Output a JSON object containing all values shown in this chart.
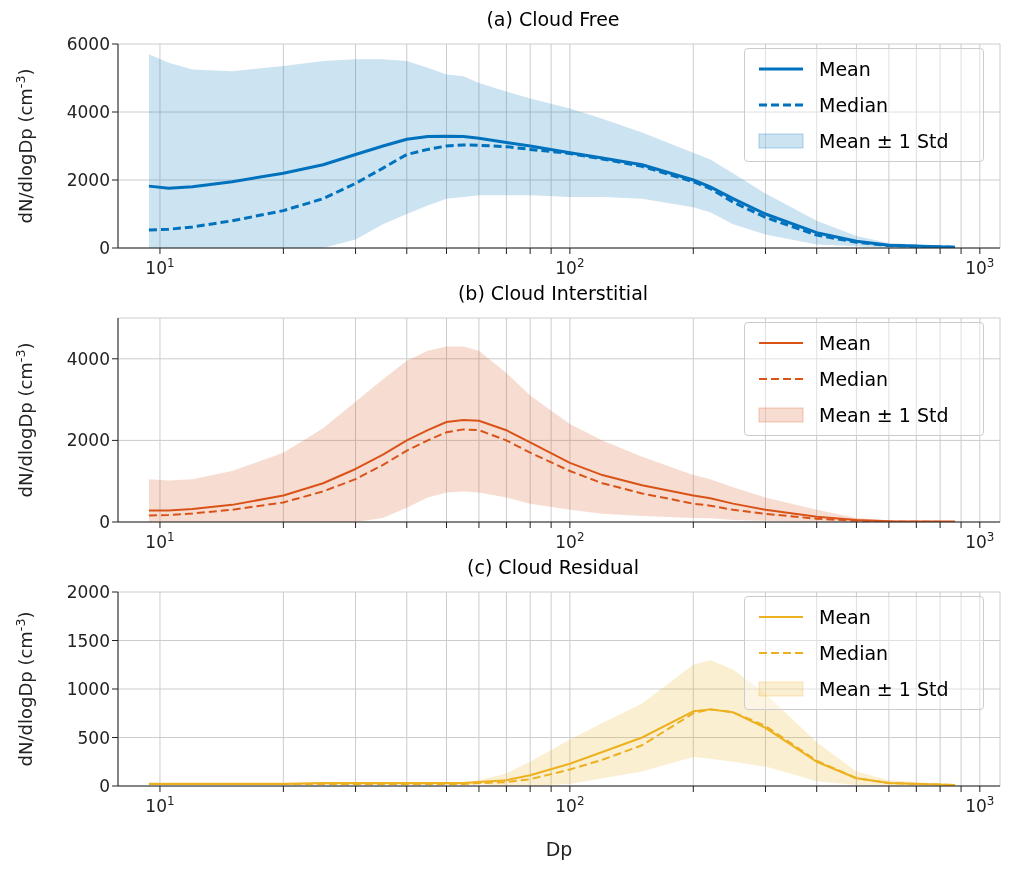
{
  "chart_data": [
    {
      "type": "line",
      "title": "(a) Cloud Free",
      "ylabel": "dN/dlogDp (cm$^{-3}$)",
      "annotations": [
        "Mean ± 1 Std"
      ],
      "xlim": [
        7.9,
        1120
      ],
      "ylim": [
        0,
        6000
      ],
      "yticks": [
        0,
        2000,
        4000,
        6000
      ],
      "log": "x",
      "grid": true,
      "legend": "top right",
      "xticks": [
        {
          "value": 10,
          "label": "10$^{1}$"
        },
        {
          "value": 20,
          "label": null
        },
        {
          "value": 30,
          "label": null
        },
        {
          "value": 40,
          "label": null
        },
        {
          "value": 50,
          "label": null
        },
        {
          "value": 60,
          "label": null
        },
        {
          "value": 70,
          "label": null
        },
        {
          "value": 80,
          "label": null
        },
        {
          "value": 90,
          "label": null
        },
        {
          "value": 100,
          "label": "10$^{2}$"
        },
        {
          "value": 200,
          "label": null
        },
        {
          "value": 300,
          "label": null
        },
        {
          "value": 400,
          "label": null
        },
        {
          "value": 500,
          "label": null
        },
        {
          "value": 600,
          "label": null
        },
        {
          "value": 700,
          "label": null
        },
        {
          "value": 800,
          "label": null
        },
        {
          "value": 900,
          "label": null
        },
        {
          "value": 1000,
          "label": "10$^{3}$"
        }
      ],
      "x": [
        9.4,
        10.5,
        12,
        15,
        20,
        25,
        30,
        35,
        40,
        45,
        50,
        55,
        60,
        70,
        80,
        100,
        120,
        150,
        200,
        220,
        250,
        300,
        400,
        500,
        600,
        870
      ],
      "series": [
        {
          "name": "Mean",
          "color": "#0072bd",
          "line_style": "solid",
          "values": [
            1820,
            1760,
            1800,
            1950,
            2200,
            2450,
            2750,
            3000,
            3200,
            3280,
            3290,
            3280,
            3230,
            3100,
            3000,
            2800,
            2650,
            2450,
            2000,
            1800,
            1450,
            1000,
            450,
            200,
            80,
            20
          ],
          "upper": [
            5700,
            5450,
            5250,
            5200,
            5350,
            5500,
            5550,
            5550,
            5500,
            5300,
            5100,
            5050,
            4850,
            4600,
            4400,
            4100,
            3800,
            3400,
            2800,
            2600,
            2200,
            1600,
            800,
            350,
            150,
            40
          ],
          "lower": [
            0,
            0,
            0,
            0,
            0,
            0,
            250,
            700,
            1000,
            1250,
            1450,
            1500,
            1550,
            1550,
            1550,
            1500,
            1500,
            1450,
            1200,
            1050,
            700,
            400,
            100,
            50,
            10,
            0
          ]
        },
        {
          "name": "Median",
          "color": "#0072bd",
          "line_style": "dashed",
          "values": [
            530,
            550,
            620,
            800,
            1100,
            1450,
            1900,
            2350,
            2750,
            2900,
            3000,
            3030,
            3020,
            2980,
            2900,
            2780,
            2620,
            2400,
            1950,
            1750,
            1350,
            900,
            380,
            170,
            70,
            20
          ]
        }
      ]
    },
    {
      "type": "line",
      "title": "(b) Cloud Interstitial",
      "ylabel": "dN/dlogDp (cm$^{-3}$)",
      "annotations": [
        "Mean ± 1 Std"
      ],
      "xlim": [
        7.9,
        1120
      ],
      "ylim": [
        0,
        5000
      ],
      "yticks": [
        0,
        2000,
        4000
      ],
      "log": "x",
      "grid": true,
      "legend": "top right",
      "xticks": [
        {
          "value": 10,
          "label": "10$^{1}$"
        },
        {
          "value": 20,
          "label": null
        },
        {
          "value": 30,
          "label": null
        },
        {
          "value": 40,
          "label": null
        },
        {
          "value": 50,
          "label": null
        },
        {
          "value": 60,
          "label": null
        },
        {
          "value": 70,
          "label": null
        },
        {
          "value": 80,
          "label": null
        },
        {
          "value": 90,
          "label": null
        },
        {
          "value": 100,
          "label": "10$^{2}$"
        },
        {
          "value": 200,
          "label": null
        },
        {
          "value": 300,
          "label": null
        },
        {
          "value": 400,
          "label": null
        },
        {
          "value": 500,
          "label": null
        },
        {
          "value": 600,
          "label": null
        },
        {
          "value": 700,
          "label": null
        },
        {
          "value": 800,
          "label": null
        },
        {
          "value": 900,
          "label": null
        },
        {
          "value": 1000,
          "label": "10$^{3}$"
        }
      ],
      "x": [
        9.4,
        10.5,
        12,
        15,
        20,
        25,
        30,
        35,
        40,
        45,
        50,
        55,
        60,
        70,
        80,
        100,
        120,
        150,
        200,
        220,
        250,
        300,
        400,
        500,
        600,
        870
      ],
      "series": [
        {
          "name": "Mean",
          "color": "#d95319",
          "line_style": "solid",
          "values": [
            280,
            280,
            320,
            420,
            650,
            950,
            1300,
            1650,
            2000,
            2250,
            2450,
            2500,
            2480,
            2250,
            1950,
            1450,
            1150,
            900,
            650,
            580,
            450,
            300,
            130,
            50,
            20,
            10
          ],
          "upper": [
            1050,
            1020,
            1050,
            1250,
            1700,
            2300,
            2950,
            3500,
            3950,
            4200,
            4300,
            4300,
            4200,
            3650,
            3100,
            2400,
            2000,
            1600,
            1150,
            1050,
            850,
            600,
            300,
            100,
            40,
            10
          ],
          "lower": [
            0,
            0,
            0,
            0,
            0,
            0,
            0,
            100,
            350,
            600,
            720,
            750,
            720,
            600,
            450,
            300,
            200,
            150,
            100,
            90,
            50,
            30,
            10,
            0,
            0,
            0
          ]
        },
        {
          "name": "Median",
          "color": "#d95319",
          "line_style": "dashed",
          "values": [
            160,
            170,
            210,
            300,
            480,
            750,
            1050,
            1400,
            1750,
            2000,
            2200,
            2270,
            2250,
            2000,
            1700,
            1250,
            950,
            700,
            450,
            400,
            300,
            200,
            80,
            30,
            10,
            0
          ]
        }
      ]
    },
    {
      "type": "line",
      "title": "(c) Cloud Residual",
      "xlabel": "Dp",
      "ylabel": "dN/dlogDp (cm$^{-3}$)",
      "annotations": [
        "Mean ± 1 Std"
      ],
      "xlim": [
        7.9,
        1120
      ],
      "ylim": [
        0,
        2000
      ],
      "yticks": [
        0,
        500,
        1000,
        1500,
        2000
      ],
      "log": "x",
      "grid": true,
      "legend": "top right",
      "xticks": [
        {
          "value": 10,
          "label": "10$^{1}$"
        },
        {
          "value": 20,
          "label": null
        },
        {
          "value": 30,
          "label": null
        },
        {
          "value": 40,
          "label": null
        },
        {
          "value": 50,
          "label": null
        },
        {
          "value": 60,
          "label": null
        },
        {
          "value": 70,
          "label": null
        },
        {
          "value": 80,
          "label": null
        },
        {
          "value": 90,
          "label": null
        },
        {
          "value": 100,
          "label": "10$^{2}$"
        },
        {
          "value": 200,
          "label": null
        },
        {
          "value": 300,
          "label": null
        },
        {
          "value": 400,
          "label": null
        },
        {
          "value": 500,
          "label": null
        },
        {
          "value": 600,
          "label": null
        },
        {
          "value": 700,
          "label": null
        },
        {
          "value": 800,
          "label": null
        },
        {
          "value": 900,
          "label": null
        },
        {
          "value": 1000,
          "label": "10$^{3}$"
        }
      ],
      "x": [
        9.4,
        10.5,
        12,
        15,
        20,
        25,
        30,
        35,
        40,
        45,
        50,
        55,
        60,
        70,
        80,
        100,
        120,
        150,
        200,
        220,
        250,
        300,
        400,
        500,
        600,
        870
      ],
      "series": [
        {
          "name": "Mean",
          "color": "#edb120",
          "line_style": "solid",
          "values": [
            20,
            20,
            20,
            20,
            20,
            30,
            30,
            30,
            30,
            30,
            30,
            30,
            40,
            60,
            110,
            230,
            350,
            500,
            770,
            790,
            760,
            600,
            250,
            80,
            30,
            10
          ],
          "upper": [
            40,
            40,
            40,
            40,
            40,
            40,
            40,
            40,
            40,
            40,
            40,
            40,
            60,
            130,
            250,
            480,
            650,
            850,
            1250,
            1300,
            1200,
            950,
            450,
            150,
            60,
            10
          ],
          "lower": [
            10,
            10,
            10,
            10,
            10,
            10,
            10,
            10,
            10,
            10,
            10,
            10,
            20,
            0,
            0,
            20,
            80,
            150,
            300,
            280,
            250,
            200,
            50,
            10,
            0,
            0
          ]
        },
        {
          "name": "Median",
          "color": "#edb120",
          "line_style": "dashed",
          "values": [
            20,
            20,
            20,
            20,
            20,
            20,
            20,
            20,
            20,
            20,
            20,
            20,
            30,
            40,
            70,
            170,
            270,
            420,
            750,
            790,
            760,
            620,
            260,
            80,
            30,
            10
          ]
        }
      ]
    }
  ]
}
